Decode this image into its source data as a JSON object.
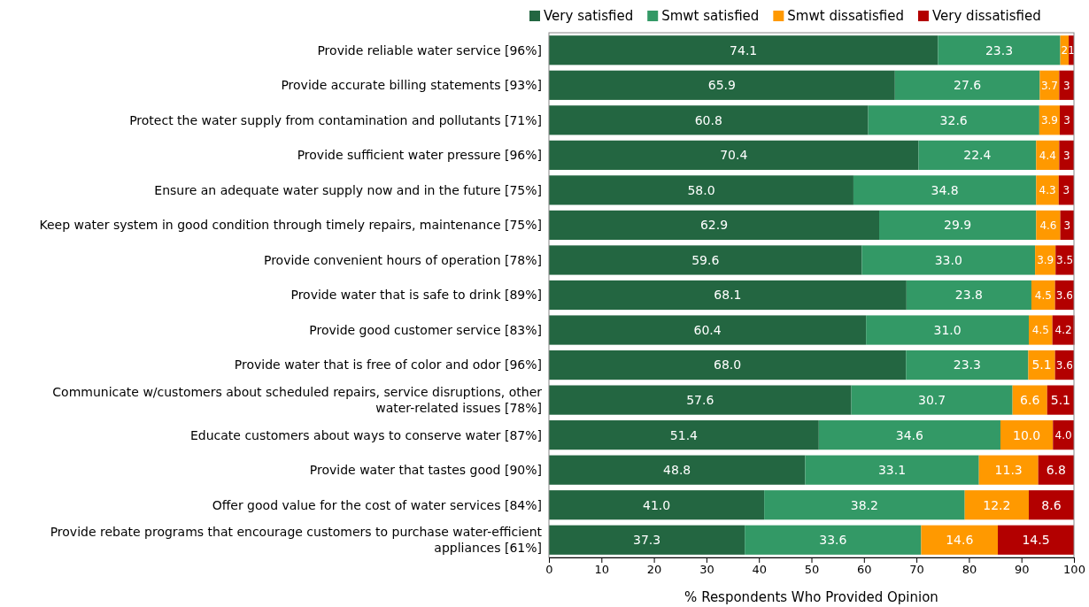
{
  "chart_data": {
    "type": "bar",
    "orientation": "horizontal",
    "stacked": true,
    "legend": "top",
    "grid": false,
    "xlabel": "% Respondents Who Provided Opinion",
    "xlim": [
      0,
      100
    ],
    "xticks": [
      0,
      10,
      20,
      30,
      40,
      50,
      60,
      70,
      80,
      90,
      100
    ],
    "categories": [
      "Provide reliable water service [96%]",
      "Provide accurate billing statements [93%]",
      "Protect the water supply from contamination and pollutants [71%]",
      "Provide sufficient water pressure [96%]",
      "Ensure an adequate water supply now and in the future [75%]",
      "Keep water system in good condition through timely repairs, maintenance [75%]",
      "Provide convenient hours of operation [78%]",
      "Provide water that is safe to drink [89%]",
      "Provide good customer service [83%]",
      "Provide water that is free of color and odor [96%]",
      "Communicate w/customers about scheduled repairs, service disruptions, other water-related issues [78%]",
      "Educate customers about ways to conserve water [87%]",
      "Provide water that tastes good [90%]",
      "Offer good value for the cost of water services [84%]",
      "Provide rebate programs that encourage customers to purchase water-efficient appliances [61%]"
    ],
    "series": [
      {
        "name": "Very satisfied",
        "color": "#236641",
        "values": [
          74.1,
          65.9,
          60.8,
          70.4,
          58.0,
          62.9,
          59.6,
          68.1,
          60.4,
          68.0,
          57.6,
          51.4,
          48.8,
          41.0,
          37.3
        ],
        "value_labels": [
          "74.1",
          "65.9",
          "60.8",
          "70.4",
          "58.0",
          "62.9",
          "59.6",
          "68.1",
          "60.4",
          "68.0",
          "57.6",
          "51.4",
          "48.8",
          "41.0",
          "37.3"
        ]
      },
      {
        "name": "Smwt satisfied",
        "color": "#339966",
        "values": [
          23.3,
          27.6,
          32.6,
          22.4,
          34.8,
          29.9,
          33.0,
          23.8,
          31.0,
          23.3,
          30.7,
          34.6,
          33.1,
          38.2,
          33.6
        ],
        "value_labels": [
          "23.3",
          "27.6",
          "32.6",
          "22.4",
          "34.8",
          "29.9",
          "33.0",
          "23.8",
          "31.0",
          "23.3",
          "30.7",
          "34.6",
          "33.1",
          "38.2",
          "33.6"
        ]
      },
      {
        "name": "Smwt dissatisfied",
        "color": "#ff9900",
        "values": [
          1.6,
          3.7,
          3.9,
          4.4,
          4.3,
          4.6,
          3.9,
          4.5,
          4.5,
          5.1,
          6.6,
          10.0,
          11.3,
          12.2,
          14.6
        ],
        "value_labels": [
          "2",
          "3.7",
          "3.9",
          "4.4",
          "4.3",
          "4.6",
          "3.9",
          "4.5",
          "4.5",
          "5.1",
          "6.6",
          "10.0",
          "11.3",
          "12.2",
          "14.6"
        ]
      },
      {
        "name": "Very dissatisfied",
        "color": "#b30000",
        "values": [
          1.0,
          2.8,
          2.7,
          2.8,
          2.9,
          2.6,
          3.5,
          3.6,
          4.2,
          3.6,
          5.1,
          4.0,
          6.8,
          8.6,
          14.5
        ],
        "value_labels": [
          "1",
          "3",
          "3",
          "3",
          "3",
          "3",
          "3.5",
          "3.6",
          "4.2",
          "3.6",
          "5.1",
          "4.0",
          "6.8",
          "8.6",
          "14.5"
        ]
      }
    ]
  }
}
